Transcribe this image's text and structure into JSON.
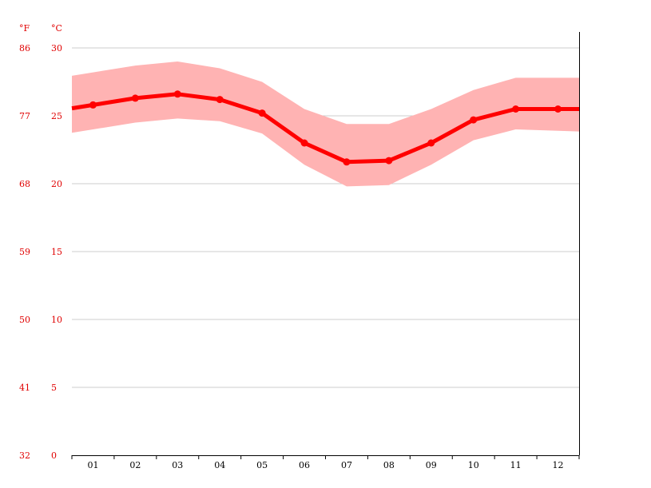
{
  "chart_data": {
    "type": "line",
    "categories": [
      "01",
      "02",
      "03",
      "04",
      "05",
      "06",
      "07",
      "08",
      "09",
      "10",
      "11",
      "12"
    ],
    "series": [
      {
        "role": "mean",
        "values": [
          25.8,
          26.3,
          26.6,
          26.2,
          25.2,
          23.0,
          21.6,
          21.7,
          23.0,
          24.7,
          25.5,
          25.5
        ]
      },
      {
        "role": "max",
        "values": [
          28.2,
          28.7,
          29.0,
          28.5,
          27.5,
          25.5,
          24.4,
          24.4,
          25.5,
          26.9,
          27.8,
          27.8
        ]
      },
      {
        "role": "min",
        "values": [
          24.0,
          24.5,
          24.8,
          24.6,
          23.7,
          21.4,
          19.8,
          19.9,
          21.4,
          23.2,
          24.0,
          23.9
        ]
      }
    ],
    "y_left_unit": "°F",
    "y_right_unit": "°C",
    "ylim": [
      0,
      30
    ],
    "yticks_c": [
      "30",
      "25",
      "20",
      "15",
      "10",
      "5",
      "0"
    ],
    "yticks_f": [
      "86",
      "77",
      "68",
      "59",
      "50",
      "41",
      "32"
    ],
    "grid": true,
    "colors": {
      "line": "#ff0000",
      "band": "#ffb3b3",
      "tick_text": "#e00000",
      "grid": "#cccccc",
      "axis": "#000000"
    }
  }
}
